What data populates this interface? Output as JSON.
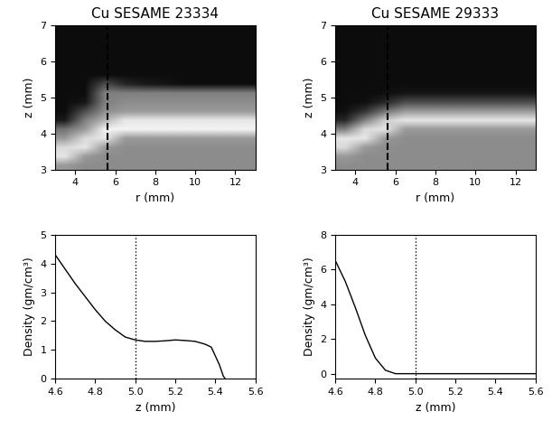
{
  "chart_data": [
    {
      "type": "heatmap",
      "title": "Cu SESAME 23334",
      "x_label": "r (mm)",
      "y_label": "z (mm)",
      "xlim": [
        3,
        13
      ],
      "ylim": [
        3,
        7
      ],
      "xticks": [
        4,
        6,
        8,
        10,
        12
      ],
      "yticks": [
        3,
        4,
        5,
        6,
        7
      ],
      "color_range": [
        0,
        1
      ],
      "vline": 5.6,
      "cells": [
        [
          0.6,
          0.55,
          0.55,
          0.55,
          0.55,
          0.55,
          0.55,
          0.55,
          0.55,
          0.55
        ],
        [
          0.9,
          0.6,
          0.55,
          0.55,
          0.55,
          0.55,
          0.55,
          0.55,
          0.55,
          0.55
        ],
        [
          0.85,
          0.9,
          0.6,
          0.55,
          0.55,
          0.55,
          0.55,
          0.55,
          0.55,
          0.55
        ],
        [
          0.6,
          0.85,
          0.9,
          0.6,
          0.6,
          0.6,
          0.6,
          0.6,
          0.6,
          0.6
        ],
        [
          0.45,
          0.6,
          0.95,
          0.95,
          0.95,
          0.95,
          0.95,
          0.95,
          0.95,
          0.95
        ],
        [
          0.1,
          0.5,
          0.7,
          0.9,
          0.9,
          0.9,
          0.9,
          0.9,
          0.9,
          0.9
        ],
        [
          0.05,
          0.3,
          0.55,
          0.6,
          0.6,
          0.6,
          0.6,
          0.6,
          0.6,
          0.6
        ],
        [
          0.05,
          0.08,
          0.5,
          0.55,
          0.55,
          0.55,
          0.55,
          0.55,
          0.55,
          0.55
        ],
        [
          0.05,
          0.05,
          0.5,
          0.5,
          0.5,
          0.5,
          0.5,
          0.5,
          0.5,
          0.5
        ],
        [
          0.05,
          0.05,
          0.3,
          0.15,
          0.1,
          0.08,
          0.05,
          0.05,
          0.05,
          0.05
        ],
        [
          0.05,
          0.05,
          0.05,
          0.05,
          0.05,
          0.05,
          0.05,
          0.05,
          0.05,
          0.05
        ],
        [
          0.05,
          0.05,
          0.05,
          0.05,
          0.05,
          0.05,
          0.05,
          0.05,
          0.05,
          0.05
        ],
        [
          0.05,
          0.05,
          0.05,
          0.05,
          0.05,
          0.05,
          0.05,
          0.05,
          0.05,
          0.05
        ],
        [
          0.05,
          0.05,
          0.05,
          0.05,
          0.05,
          0.05,
          0.05,
          0.05,
          0.05,
          0.05
        ],
        [
          0.05,
          0.05,
          0.05,
          0.05,
          0.05,
          0.05,
          0.05,
          0.05,
          0.05,
          0.05
        ],
        [
          0.05,
          0.05,
          0.05,
          0.05,
          0.05,
          0.05,
          0.05,
          0.05,
          0.05,
          0.05
        ]
      ]
    },
    {
      "type": "heatmap",
      "title": "Cu SESAME 29333",
      "x_label": "r (mm)",
      "y_label": "z (mm)",
      "xlim": [
        3,
        13
      ],
      "ylim": [
        3,
        7
      ],
      "xticks": [
        4,
        6,
        8,
        10,
        12
      ],
      "yticks": [
        3,
        4,
        5,
        6,
        7
      ],
      "color_range": [
        0,
        1
      ],
      "vline": 5.6,
      "cells": [
        [
          0.55,
          0.55,
          0.55,
          0.55,
          0.55,
          0.55,
          0.55,
          0.55,
          0.55,
          0.55
        ],
        [
          0.6,
          0.55,
          0.55,
          0.55,
          0.55,
          0.55,
          0.55,
          0.55,
          0.55,
          0.55
        ],
        [
          0.85,
          0.6,
          0.55,
          0.55,
          0.55,
          0.55,
          0.55,
          0.55,
          0.55,
          0.55
        ],
        [
          0.9,
          0.9,
          0.6,
          0.55,
          0.55,
          0.55,
          0.55,
          0.55,
          0.55,
          0.55
        ],
        [
          0.5,
          0.85,
          0.9,
          0.6,
          0.6,
          0.6,
          0.6,
          0.6,
          0.6,
          0.6
        ],
        [
          0.15,
          0.5,
          0.8,
          0.9,
          0.9,
          0.9,
          0.9,
          0.9,
          0.9,
          0.9
        ],
        [
          0.06,
          0.2,
          0.45,
          0.6,
          0.6,
          0.6,
          0.6,
          0.6,
          0.6,
          0.6
        ],
        [
          0.05,
          0.06,
          0.15,
          0.3,
          0.3,
          0.3,
          0.3,
          0.3,
          0.3,
          0.3
        ],
        [
          0.05,
          0.05,
          0.06,
          0.08,
          0.08,
          0.08,
          0.08,
          0.08,
          0.08,
          0.08
        ],
        [
          0.05,
          0.05,
          0.05,
          0.05,
          0.05,
          0.05,
          0.05,
          0.05,
          0.05,
          0.05
        ],
        [
          0.05,
          0.05,
          0.05,
          0.05,
          0.05,
          0.05,
          0.05,
          0.05,
          0.05,
          0.05
        ],
        [
          0.05,
          0.05,
          0.05,
          0.05,
          0.05,
          0.05,
          0.05,
          0.05,
          0.05,
          0.05
        ],
        [
          0.05,
          0.05,
          0.05,
          0.05,
          0.05,
          0.05,
          0.05,
          0.05,
          0.05,
          0.05
        ],
        [
          0.05,
          0.05,
          0.05,
          0.05,
          0.05,
          0.05,
          0.05,
          0.05,
          0.05,
          0.05
        ],
        [
          0.05,
          0.05,
          0.05,
          0.05,
          0.05,
          0.05,
          0.05,
          0.05,
          0.05,
          0.05
        ],
        [
          0.05,
          0.05,
          0.05,
          0.05,
          0.05,
          0.05,
          0.05,
          0.05,
          0.05,
          0.05
        ]
      ]
    },
    {
      "type": "line",
      "x_label": "z (mm)",
      "y_label": "Density (gm/cm³)",
      "xlim": [
        4.6,
        5.6
      ],
      "ylim": [
        0,
        5
      ],
      "xticks": [
        4.6,
        4.8,
        5.0,
        5.2,
        5.4,
        5.6
      ],
      "yticks": [
        0,
        1,
        2,
        3,
        4,
        5
      ],
      "vline": 5.0,
      "color": "#000000",
      "x": [
        4.6,
        4.65,
        4.7,
        4.75,
        4.8,
        4.85,
        4.9,
        4.95,
        5.0,
        5.05,
        5.1,
        5.15,
        5.2,
        5.25,
        5.3,
        5.35,
        5.38,
        5.4,
        5.42,
        5.44,
        5.45
      ],
      "values": [
        4.3,
        3.8,
        3.3,
        2.85,
        2.4,
        2.0,
        1.7,
        1.45,
        1.35,
        1.3,
        1.3,
        1.32,
        1.35,
        1.33,
        1.3,
        1.2,
        1.1,
        0.8,
        0.5,
        0.1,
        0.0
      ]
    },
    {
      "type": "line",
      "x_label": "z (mm)",
      "y_label": "Density (gm/cm³)",
      "xlim": [
        4.6,
        5.6
      ],
      "ylim": [
        -0.3,
        8
      ],
      "xticks": [
        4.6,
        4.8,
        5.0,
        5.2,
        5.4,
        5.6
      ],
      "yticks": [
        0,
        2,
        4,
        6,
        8
      ],
      "vline": 5.0,
      "color": "#000000",
      "x": [
        4.6,
        4.65,
        4.7,
        4.75,
        4.8,
        4.85,
        4.9,
        5.0,
        5.2,
        5.4,
        5.6
      ],
      "values": [
        6.5,
        5.3,
        3.8,
        2.2,
        0.9,
        0.2,
        0.0,
        0.0,
        0.0,
        0.0,
        0.0
      ]
    }
  ]
}
